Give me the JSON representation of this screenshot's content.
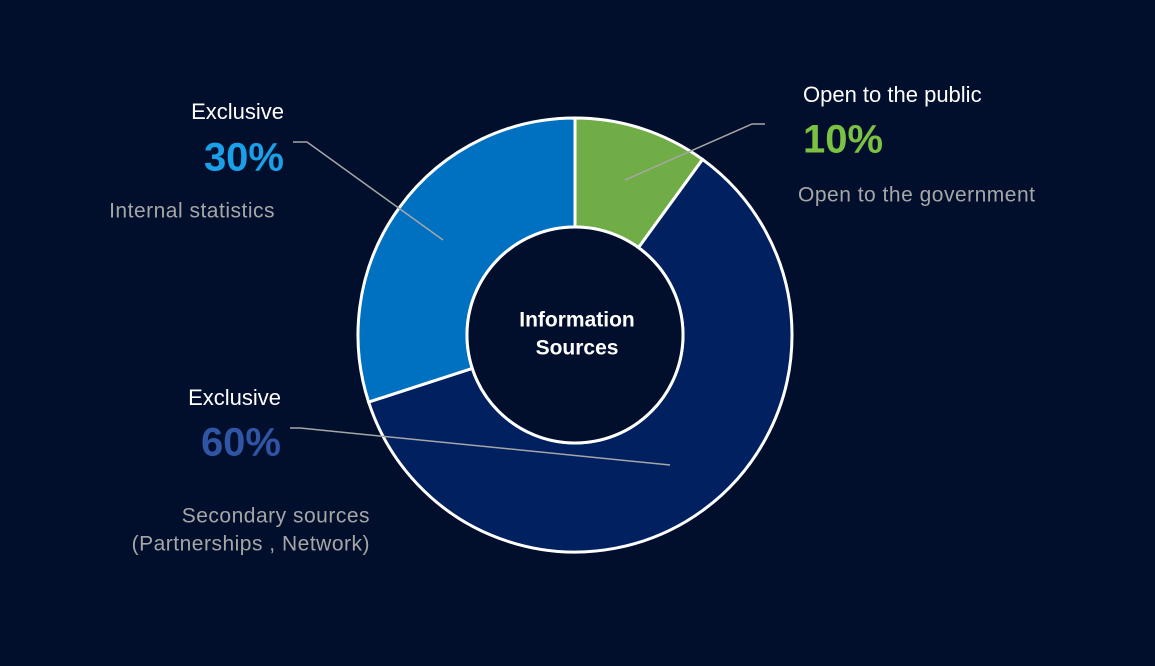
{
  "chart_data": {
    "type": "donut",
    "center_label": [
      "Information",
      "Sources"
    ],
    "categories": [
      "Open to the public",
      "Exclusive",
      "Exclusive"
    ],
    "values": [
      10,
      60,
      30
    ],
    "value_labels": [
      "10%",
      "60%",
      "30%"
    ],
    "colors": [
      "#70ad47",
      "#002060",
      "#0070c0"
    ],
    "label_colors": [
      "#7bc143",
      "#2f55a4",
      "#1aa0e8"
    ],
    "descriptions": [
      [
        "Open to the government"
      ],
      [
        "Secondary sources",
        "(Partnerships , Network)"
      ],
      [
        "Internal statistics"
      ]
    ]
  }
}
